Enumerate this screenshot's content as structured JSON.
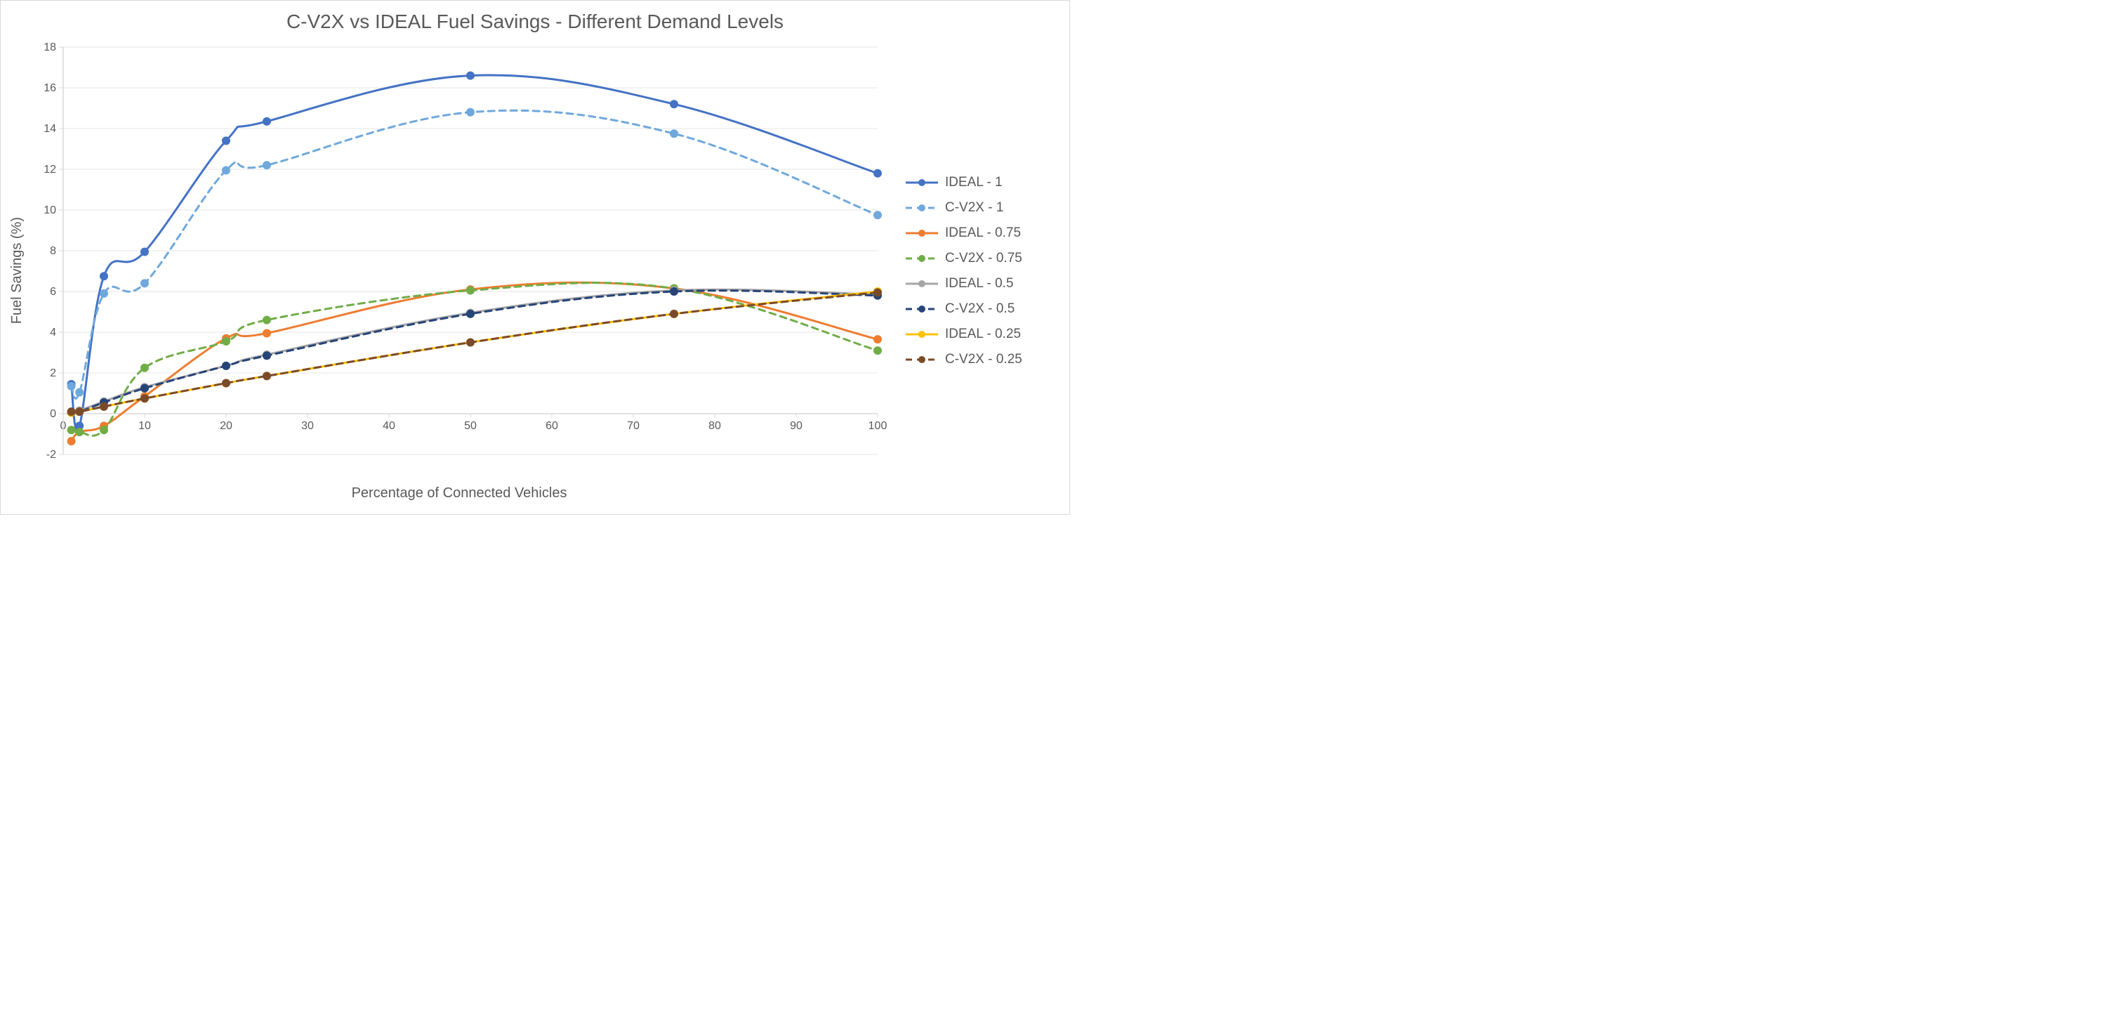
{
  "chart": {
    "title": "C-V2X vs IDEAL Fuel Savings - Different Demand Levels",
    "title_fontsize": 28,
    "title_color": "#595959",
    "x_axis": {
      "label": "Percentage of Connected Vehicles",
      "label_fontsize": 20,
      "min": 0,
      "max": 100,
      "tick_step": 10,
      "ticks": [
        0,
        10,
        20,
        30,
        40,
        50,
        60,
        70,
        80,
        90,
        100
      ],
      "tick_fontsize": 16
    },
    "y_axis": {
      "label": "Fuel Savings (%)",
      "label_fontsize": 20,
      "min": -2,
      "max": 18,
      "tick_step": 2,
      "ticks": [
        -2,
        0,
        2,
        4,
        6,
        8,
        10,
        12,
        14,
        16,
        18
      ],
      "tick_fontsize": 16
    },
    "plot": {
      "inner_width": 1160,
      "inner_height": 580,
      "background_color": "#ffffff",
      "grid_color": "#e6e6e6",
      "axis_line_color": "#d9d9d9",
      "border_color": "#d9d9d9",
      "marker_radius": 6,
      "line_width": 3,
      "dash_pattern": "9,7",
      "smooth": true
    },
    "legend": {
      "fontsize": 19,
      "text_color": "#595959",
      "swatch_line_width": 3,
      "swatch_marker_radius": 5
    },
    "series_x": [
      1,
      2,
      5,
      10,
      20,
      25,
      50,
      75,
      100
    ],
    "series": [
      {
        "key": "ideal_1",
        "label": "IDEAL - 1",
        "color": "#4472c4",
        "dashed": false,
        "y": [
          1.45,
          -0.6,
          6.75,
          7.95,
          13.4,
          14.35,
          16.6,
          15.2,
          11.8
        ]
      },
      {
        "key": "cv2x_1",
        "label": "C-V2X - 1",
        "color": "#6fa8dc",
        "dashed": true,
        "y": [
          1.35,
          1.05,
          5.9,
          6.4,
          11.95,
          12.2,
          14.8,
          13.75,
          9.75
        ]
      },
      {
        "key": "ideal_075",
        "label": "IDEAL - 0.75",
        "color": "#ed7d31",
        "dashed": false,
        "y": [
          -1.35,
          -0.9,
          -0.6,
          0.85,
          3.7,
          3.95,
          6.1,
          6.15,
          3.65
        ]
      },
      {
        "key": "cv2x_075",
        "label": "C-V2X - 0.75",
        "color": "#70ad47",
        "dashed": true,
        "y": [
          -0.8,
          -0.9,
          -0.8,
          2.25,
          3.55,
          4.6,
          6.05,
          6.15,
          3.1
        ]
      },
      {
        "key": "ideal_05",
        "label": "IDEAL - 0.5",
        "color": "#a6a6a6",
        "dashed": false,
        "y": [
          0.05,
          0.15,
          0.6,
          1.3,
          2.35,
          2.9,
          4.95,
          6.05,
          5.85
        ]
      },
      {
        "key": "cv2x_05",
        "label": "C-V2X - 0.5",
        "color": "#264478",
        "dashed": true,
        "y": [
          0.05,
          0.1,
          0.55,
          1.25,
          2.35,
          2.85,
          4.9,
          6.0,
          5.8
        ]
      },
      {
        "key": "ideal_025",
        "label": "IDEAL - 0.25",
        "color": "#ffc000",
        "dashed": false,
        "y": [
          0.05,
          0.1,
          0.35,
          0.75,
          1.5,
          1.85,
          3.5,
          4.9,
          6.0
        ]
      },
      {
        "key": "cv2x_025",
        "label": "C-V2X - 0.25",
        "color": "#7a4b2a",
        "dashed": true,
        "y": [
          0.1,
          0.1,
          0.35,
          0.75,
          1.5,
          1.85,
          3.5,
          4.9,
          5.95
        ]
      }
    ]
  }
}
